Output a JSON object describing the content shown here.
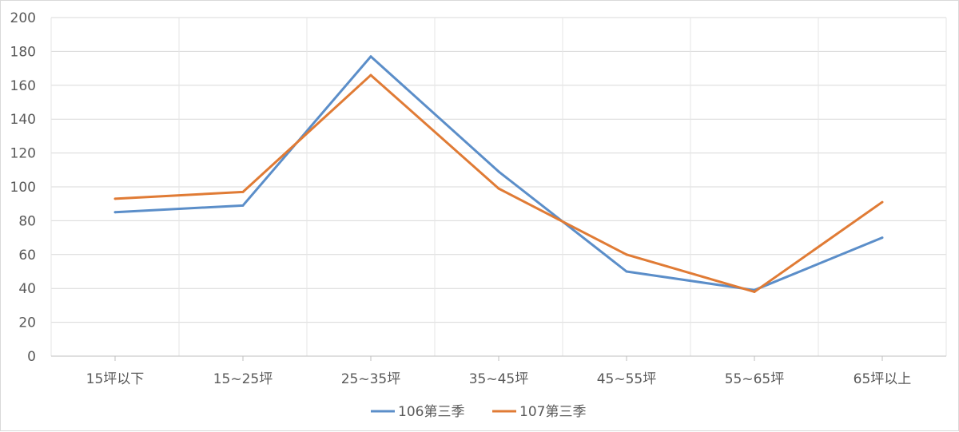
{
  "chart_data": {
    "type": "line",
    "title": "",
    "xlabel": "",
    "ylabel": "",
    "categories": [
      "15坪以下",
      "15~25坪",
      "25~35坪",
      "35~45坪",
      "45~55坪",
      "55~65坪",
      "65坪以上"
    ],
    "ylim": [
      0,
      200
    ],
    "yticks": [
      0,
      20,
      40,
      60,
      80,
      100,
      120,
      140,
      160,
      180,
      200
    ],
    "grid": true,
    "legend_position": "bottom",
    "series": [
      {
        "name": "106第三季",
        "color": "#5b8ec9",
        "values": [
          85,
          89,
          177,
          109,
          50,
          39,
          70
        ]
      },
      {
        "name": "107第三季",
        "color": "#e07b35",
        "values": [
          93,
          97,
          166,
          99,
          60,
          38,
          91
        ]
      }
    ]
  }
}
